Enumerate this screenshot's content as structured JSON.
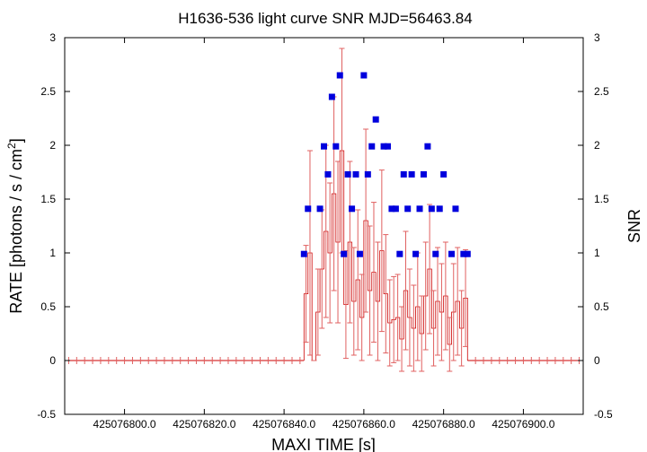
{
  "chart_data": {
    "type": "scatter",
    "title": "H1636-536 light curve  SNR MJD=56463.84",
    "xlabel": "MAXI TIME [s]",
    "ylabel_prefix": "RATE [photons / s / cm",
    "ylabel_sup": "2",
    "ylabel_suffix": "]",
    "y2label": "SNR",
    "xlim": [
      425076785.0,
      425076915.0
    ],
    "ylim": [
      -0.5,
      3.0
    ],
    "y2lim": [
      -0.5,
      3.0
    ],
    "xticks": [
      425076800.0,
      425076820.0,
      425076840.0,
      425076860.0,
      425076880.0,
      425076900.0
    ],
    "xtick_labels": [
      "425076800.0",
      "425076820.0",
      "425076840.0",
      "425076860.0",
      "425076880.0",
      "425076900.0"
    ],
    "yticks": [
      -0.5,
      0,
      0.5,
      1,
      1.5,
      2,
      2.5,
      3
    ],
    "ytick_labels": [
      "-0.5",
      "0",
      "0.5",
      "1",
      "1.5",
      "2",
      "2.5",
      "3"
    ],
    "colors": {
      "rate": "#e06060",
      "rate_step": "#cc0000",
      "snr": "#0000dd"
    },
    "rate_series": {
      "name": "RATE",
      "x": [
        425076845.0,
        425076846.0,
        425076847.0,
        425076848.0,
        425076849.0,
        425076850.0,
        425076851.0,
        425076852.0,
        425076853.0,
        425076854.0,
        425076855.0,
        425076856.0,
        425076857.0,
        425076858.0,
        425076859.0,
        425076860.0,
        425076861.0,
        425076862.0,
        425076863.0,
        425076864.0,
        425076865.0,
        425076866.0,
        425076867.0,
        425076868.0,
        425076869.0,
        425076870.0,
        425076871.0,
        425076872.0,
        425076873.0,
        425076874.0,
        425076875.0,
        425076876.0,
        425076877.0,
        425076878.0,
        425076879.0,
        425076880.0,
        425076881.0,
        425076882.0,
        425076883.0,
        425076884.0,
        425076885.0
      ],
      "y": [
        0.62,
        1.0,
        0.0,
        0.45,
        0.85,
        1.2,
        1.0,
        1.55,
        1.1,
        1.95,
        0.52,
        1.1,
        0.55,
        0.75,
        0.4,
        1.3,
        0.65,
        0.82,
        0.55,
        1.02,
        0.62,
        0.35,
        0.38,
        0.4,
        0.2,
        0.65,
        0.4,
        0.3,
        0.5,
        0.25,
        0.6,
        0.85,
        0.3,
        0.55,
        0.45,
        0.6,
        0.15,
        0.45,
        0.55,
        0.3,
        0.58
      ],
      "err": [
        0.45,
        0.95,
        0.0,
        0.4,
        0.55,
        0.8,
        0.65,
        0.9,
        0.75,
        0.95,
        0.5,
        0.75,
        0.5,
        0.65,
        0.4,
        0.85,
        0.6,
        0.65,
        0.55,
        0.75,
        0.55,
        0.4,
        0.4,
        0.4,
        0.3,
        0.55,
        0.45,
        0.4,
        0.5,
        0.35,
        0.5,
        0.6,
        0.35,
        0.5,
        0.45,
        0.5,
        0.25,
        0.45,
        0.5,
        0.35,
        0.45
      ]
    },
    "snr_series": {
      "name": "SNR",
      "x": [
        425076845.0,
        425076846.0,
        425076849.0,
        425076850.0,
        425076851.0,
        425076852.0,
        425076853.0,
        425076854.0,
        425076855.0,
        425076856.0,
        425076857.0,
        425076858.0,
        425076859.0,
        425076860.0,
        425076861.0,
        425076862.0,
        425076863.0,
        425076865.0,
        425076866.0,
        425076867.0,
        425076868.0,
        425076869.0,
        425076870.0,
        425076871.0,
        425076872.0,
        425076873.0,
        425076874.0,
        425076875.0,
        425076876.0,
        425076877.0,
        425076878.0,
        425076879.0,
        425076880.0,
        425076882.0,
        425076883.0,
        425076885.0,
        425076886.0
      ],
      "y": [
        0.99,
        1.41,
        1.41,
        1.99,
        1.73,
        2.45,
        1.99,
        2.65,
        0.99,
        1.73,
        1.41,
        1.73,
        0.99,
        2.65,
        1.73,
        1.99,
        2.24,
        1.99,
        1.99,
        1.41,
        1.41,
        0.99,
        1.73,
        1.41,
        1.73,
        0.99,
        1.41,
        1.73,
        1.99,
        1.41,
        0.99,
        1.41,
        1.73,
        0.99,
        1.41,
        0.99,
        0.99
      ]
    },
    "baseline_ticks_x_step": 2.0,
    "grid": false,
    "legend": "none"
  }
}
